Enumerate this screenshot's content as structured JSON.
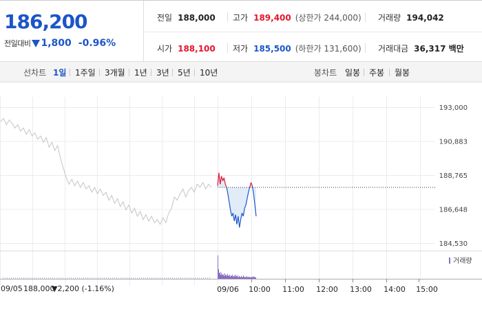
{
  "quote": {
    "price": "186,200",
    "change_label": "전일대비",
    "change_amount": "1,800",
    "change_percent": "-0.96%",
    "direction": "down"
  },
  "stats": {
    "prev_close": {
      "label": "전일",
      "value": "188,000"
    },
    "high": {
      "label": "고가",
      "value": "189,400",
      "sub": "(상한가 244,000)"
    },
    "volume": {
      "label": "거래량",
      "value": "194,042"
    },
    "open": {
      "label": "시가",
      "value": "188,100"
    },
    "low": {
      "label": "저가",
      "value": "185,500",
      "sub": "(하한가 131,600)"
    },
    "turnover": {
      "label": "거래대금",
      "value": "36,317 백만"
    }
  },
  "line_chart_label": "선차트",
  "line_periods": [
    {
      "label": "1일",
      "active": true
    },
    {
      "label": "1주일",
      "active": false
    },
    {
      "label": "3개월",
      "active": false
    },
    {
      "label": "1년",
      "active": false
    },
    {
      "label": "3년",
      "active": false
    },
    {
      "label": "5년",
      "active": false
    },
    {
      "label": "10년",
      "active": false
    }
  ],
  "candle_chart_label": "봉차트",
  "candle_periods": [
    {
      "label": "일봉"
    },
    {
      "label": "주봉"
    },
    {
      "label": "월봉"
    }
  ],
  "colors": {
    "up": "#e3152c",
    "down": "#1c55c8",
    "prev_day_line": "#c4c4c4",
    "fill": "#dce9f7",
    "volume_prev": "#c8b8e0",
    "volume_today": "#8a6cc2"
  },
  "chart_data": {
    "type": "line",
    "y_ticks": [
      "193,000",
      "190,883",
      "188,765",
      "186,648",
      "184,530"
    ],
    "y_range": [
      184530,
      193000
    ],
    "reference_price": 188000,
    "x_ticks": [
      "09/06",
      "10:00",
      "11:00",
      "12:00",
      "13:00",
      "14:00",
      "15:00"
    ],
    "previous_day": {
      "date": "09/05",
      "close": "188,000",
      "change": "2,200",
      "change_pct": "(-1.16%)",
      "values": [
        192100,
        192300,
        191900,
        192200,
        192000,
        191700,
        191900,
        191500,
        191700,
        191300,
        191600,
        191200,
        191400,
        191000,
        191200,
        190800,
        191100,
        190500,
        190800,
        190300,
        190600,
        189800,
        189200,
        188600,
        188200,
        188500,
        188100,
        188400,
        188000,
        188300,
        187900,
        188100,
        187700,
        188000,
        187600,
        187900,
        187500,
        187700,
        187200,
        187500,
        187000,
        187300,
        186800,
        187100,
        186600,
        186900,
        186400,
        186700,
        186200,
        186500,
        186000,
        186300,
        185900,
        186200,
        185800,
        186000,
        185700,
        186100,
        185800,
        186400,
        186700,
        187400,
        187200,
        187600,
        187900,
        187400,
        187800,
        188000,
        187700,
        188200,
        188000,
        188300,
        187900,
        188200,
        188000
      ]
    },
    "today": {
      "values": [
        188100,
        188900,
        188200,
        188700,
        188400,
        188600,
        188200,
        188000,
        187600,
        187100,
        186600,
        186200,
        186400,
        185900,
        186300,
        185700,
        186200,
        185500,
        186000,
        186400,
        186200,
        186700,
        186900,
        187300,
        187700,
        188000,
        188300,
        188100,
        187600,
        186900,
        186200
      ]
    },
    "volume_label": "거래량"
  }
}
